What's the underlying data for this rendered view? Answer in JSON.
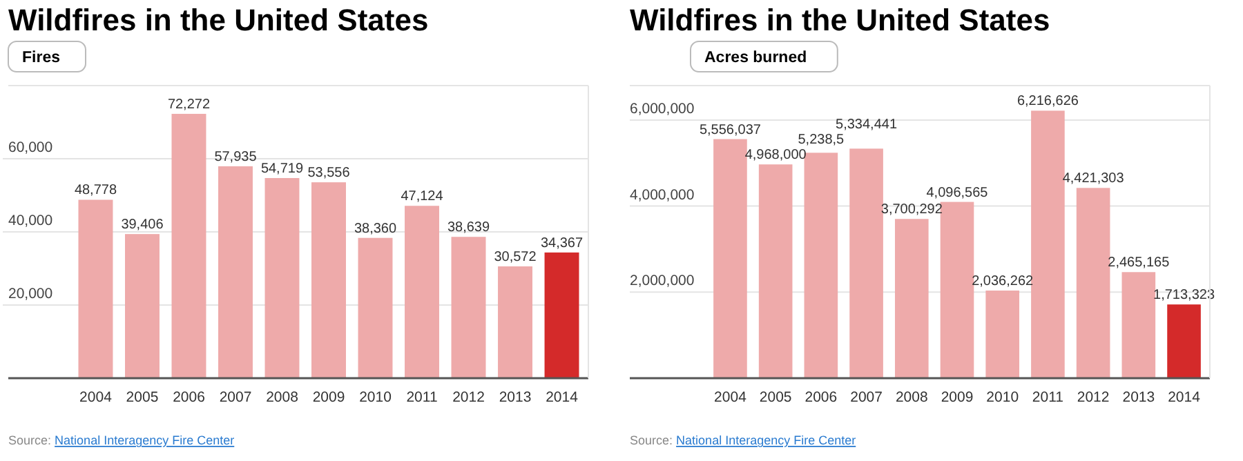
{
  "chart_data": [
    {
      "type": "bar",
      "title": "Wildfires in the United States",
      "subtitle": "Fires",
      "categories": [
        "2004",
        "2005",
        "2006",
        "2007",
        "2008",
        "2009",
        "2010",
        "2011",
        "2012",
        "2013",
        "2014"
      ],
      "values": [
        48778,
        39406,
        72272,
        57935,
        54719,
        53556,
        38360,
        47124,
        38639,
        30572,
        34367
      ],
      "colors": [
        "#eeaaaa",
        "#eeaaaa",
        "#eeaaaa",
        "#eeaaaa",
        "#eeaaaa",
        "#eeaaaa",
        "#eeaaaa",
        "#eeaaaa",
        "#eeaaaa",
        "#eeaaaa",
        "#d42a2a"
      ],
      "value_labels": [
        "48,778",
        "39,406",
        "72,272",
        "57,935",
        "54,719",
        "53,556",
        "38,360",
        "47,124",
        "38,639",
        "30,572",
        "34,367"
      ],
      "ylim": [
        0,
        80000
      ],
      "yticks": [
        {
          "value": 20000,
          "label": "20,000"
        },
        {
          "value": 40000,
          "label": "40,000"
        },
        {
          "value": 60000,
          "label": "60,000"
        }
      ],
      "grid": "y",
      "annotations": [
        "Source: National Interagency Fire Center"
      ]
    },
    {
      "type": "bar",
      "title": "Wildfires in the United States",
      "subtitle": "Acres burned",
      "categories": [
        "2004",
        "2005",
        "2006",
        "2007",
        "2008",
        "2009",
        "2010",
        "2011",
        "2012",
        "2013",
        "2014"
      ],
      "values": [
        5556037,
        4968000,
        5238500,
        5334441,
        3700292,
        4096565,
        2036262,
        6216626,
        4421303,
        2465165,
        1713323
      ],
      "value_labels": [
        "5,556,037",
        "4,968,000",
        "5,238,5",
        "5,334,441",
        "3,700,292",
        "4,096,565",
        "2,036,262",
        "6,216,626",
        "4,421,303",
        "2,465,165",
        "1,713,323"
      ],
      "colors": [
        "#eeaaaa",
        "#eeaaaa",
        "#eeaaaa",
        "#eeaaaa",
        "#eeaaaa",
        "#eeaaaa",
        "#eeaaaa",
        "#eeaaaa",
        "#eeaaaa",
        "#eeaaaa",
        "#d42a2a"
      ],
      "ylim": [
        0,
        6800000
      ],
      "yticks": [
        {
          "value": 2000000,
          "label": "2,000,000"
        },
        {
          "value": 4000000,
          "label": "4,000,000"
        },
        {
          "value": 6000000,
          "label": "6,000,000"
        }
      ],
      "grid": "y",
      "annotations": [
        "Source: National Interagency Fire Center"
      ]
    }
  ]
}
